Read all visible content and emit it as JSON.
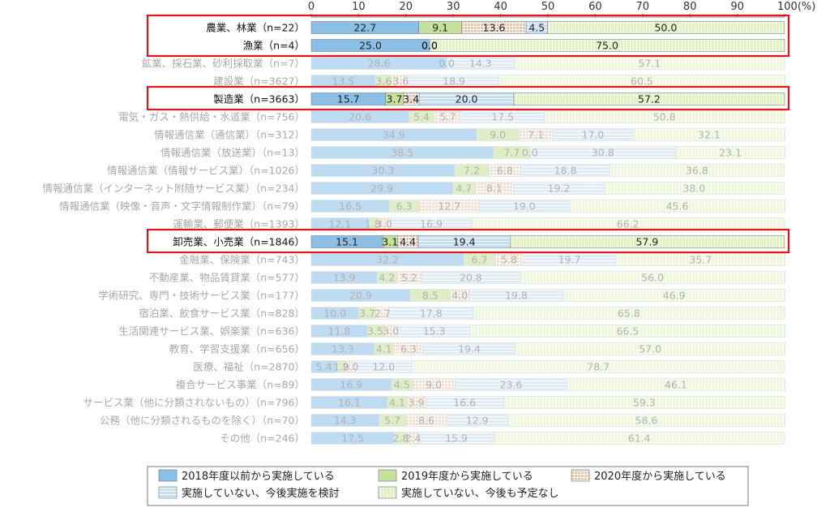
{
  "chart_data": {
    "type": "bar",
    "orientation": "horizontal",
    "stacked": true,
    "xlim": [
      0,
      100
    ],
    "x_ticks": [
      "0",
      "10",
      "20",
      "30",
      "40",
      "50",
      "60",
      "70",
      "80",
      "90",
      "100(%)"
    ],
    "series": [
      {
        "name": "2018年度以前から実施している",
        "color": "#8bbfe6",
        "pattern": "solid"
      },
      {
        "name": "2019年度から実施している",
        "color": "#c6e19b",
        "pattern": "solid"
      },
      {
        "name": "2020年度から実施している",
        "color": "#f3c39a",
        "pattern": "grid"
      },
      {
        "name": "実施していない、今後実施を検討",
        "color": "#c7dff3",
        "pattern": "hstripe"
      },
      {
        "name": "実施していない、今後も予定なし",
        "color": "#e3f0c9",
        "pattern": "vstripe"
      }
    ],
    "categories": [
      "農業、林業（n=22）",
      "漁業（n=4）",
      "鉱業、採石業、砂利採取業（n=7）",
      "建設業（n=3627）",
      "製造業（n=3663）",
      "電気・ガス・熱供給・水道業（n=756）",
      "情報通信業（通信業）（n=312）",
      "情報通信業（放送業）（n=13）",
      "情報通信業（情報サービス業）（n=1026）",
      "情報通信業（インターネット附随サービス業）（n=234）",
      "情報通信業（映像・音声・文字情報制作業）（n=79）",
      "運輸業、郵便業（n=1393）",
      "卸売業、小売業（n=1846）",
      "金融業、保険業（n=743）",
      "不動産業、物品賃貸業（n=577）",
      "学術研究、専門・技術サービス業（n=177）",
      "宿泊業、飲食サービス業（n=828）",
      "生活関連サービス業、娯楽業（n=636）",
      "教育、学習支援業（n=656）",
      "医療、福祉（n=2870）",
      "複合サービス事業（n=89）",
      "サービス業（他に分類されないもの）（n=796）",
      "公務（他に分類されるものを除く）（n=70）",
      "その他（n=246）"
    ],
    "values": [
      [
        22.7,
        9.1,
        13.6,
        4.5,
        50.0
      ],
      [
        25.0,
        0.0,
        0.0,
        0.0,
        75.0
      ],
      [
        28.6,
        0.0,
        0.0,
        14.3,
        57.1
      ],
      [
        13.5,
        3.6,
        3.6,
        18.9,
        60.5
      ],
      [
        15.7,
        3.7,
        3.4,
        20.0,
        57.2
      ],
      [
        20.6,
        5.4,
        5.7,
        17.5,
        50.8
      ],
      [
        34.9,
        9.0,
        7.1,
        17.0,
        32.1
      ],
      [
        38.5,
        7.7,
        0.0,
        30.8,
        23.1
      ],
      [
        30.3,
        7.2,
        6.8,
        18.8,
        36.8
      ],
      [
        29.9,
        4.7,
        8.1,
        19.2,
        38.0
      ],
      [
        16.5,
        6.3,
        12.7,
        19.0,
        45.6
      ],
      [
        12.1,
        1.8,
        3.0,
        16.9,
        66.2
      ],
      [
        15.1,
        3.1,
        4.4,
        19.4,
        57.9
      ],
      [
        32.2,
        6.7,
        5.8,
        19.7,
        35.7
      ],
      [
        13.9,
        4.2,
        5.2,
        20.8,
        56.0
      ],
      [
        20.9,
        8.5,
        4.0,
        19.8,
        46.9
      ],
      [
        10.0,
        3.7,
        2.7,
        17.8,
        65.8
      ],
      [
        11.8,
        3.5,
        3.0,
        15.3,
        66.5
      ],
      [
        13.3,
        4.1,
        6.3,
        19.4,
        57.0
      ],
      [
        5.4,
        1.9,
        2.0,
        12.0,
        78.7
      ],
      [
        16.9,
        4.5,
        9.0,
        23.6,
        46.1
      ],
      [
        16.1,
        4.1,
        3.9,
        16.6,
        59.3
      ],
      [
        14.3,
        5.7,
        8.6,
        12.9,
        58.6
      ],
      [
        17.5,
        2.8,
        2.4,
        15.9,
        61.4
      ]
    ],
    "labels": [
      [
        "22.7",
        "9.1",
        "13.6",
        "4.5",
        "50.0"
      ],
      [
        "25.0",
        "0.0",
        "0.0",
        "0.0",
        "75.0"
      ],
      [
        "28.6",
        "0.0",
        "0.0",
        "14.3",
        "57.1"
      ],
      [
        "13.5",
        "3.6",
        "3.6",
        "18.9",
        "60.5"
      ],
      [
        "15.7",
        "3.7",
        "3.4",
        "20.0",
        "57.2"
      ],
      [
        "20.6",
        "5.4",
        "5.7",
        "17.5",
        "50.8"
      ],
      [
        "34.9",
        "9.0",
        "7.1",
        "17.0",
        "32.1"
      ],
      [
        "38.5",
        "7.7",
        "0.0",
        "30.8",
        "23.1"
      ],
      [
        "30.3",
        "7.2",
        "6.8",
        "18.8",
        "36.8"
      ],
      [
        "29.9",
        "4.7",
        "8.1",
        "19.2",
        "38.0"
      ],
      [
        "16.5",
        "6.3",
        "12.7",
        "19.0",
        "45.6"
      ],
      [
        "12.1",
        "1.8",
        "3.0",
        "16.9",
        "66.2"
      ],
      [
        "15.1",
        "3.1",
        "4.4",
        "19.4",
        "57.9"
      ],
      [
        "32.2",
        "6.7",
        "5.8",
        "19.7",
        "35.7"
      ],
      [
        "13.9",
        "4.2",
        "5.2",
        "20.8",
        "56.0"
      ],
      [
        "20.9",
        "8.5",
        "4.0",
        "19.8",
        "46.9"
      ],
      [
        "10.0",
        "3.7",
        "2.7",
        "17.8",
        "65.8"
      ],
      [
        "11.8",
        "3.5",
        "3.0",
        "15.3",
        "66.5"
      ],
      [
        "13.3",
        "4.1",
        "6.3",
        "19.4",
        "57.0"
      ],
      [
        "5.4",
        "1.9",
        "2.0",
        "12.0",
        "78.7"
      ],
      [
        "16.9",
        "4.5",
        "9.0",
        "23.6",
        "46.1"
      ],
      [
        "16.1",
        "4.1",
        "3.9",
        "16.6",
        "59.3"
      ],
      [
        "14.3",
        "5.7",
        "8.6",
        "12.9",
        "58.6"
      ],
      [
        "17.5",
        "2.8",
        "2.4",
        "15.9",
        "61.4"
      ]
    ],
    "highlighted_categories": [
      0,
      1,
      4,
      12
    ],
    "highlight_color": "#e0161b",
    "legend_placement": "bottom",
    "grid": false
  }
}
